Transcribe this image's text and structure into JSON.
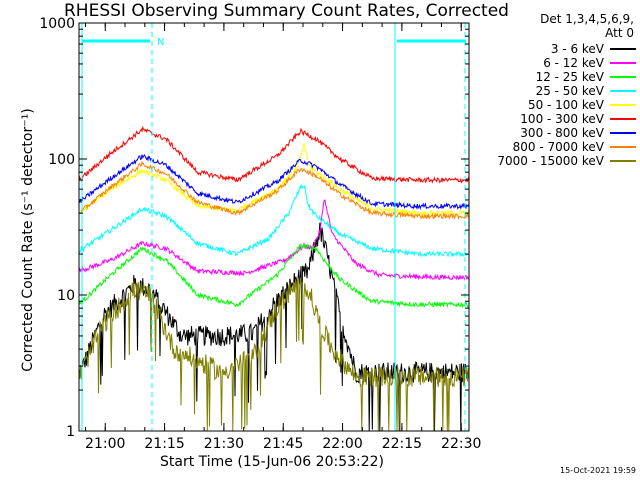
{
  "chart_data": {
    "type": "line",
    "title": "RHESSI Observing Summary Count Rates, Corrected",
    "xlabel": "Start Time (15-Jun-06 20:53:22)",
    "ylabel": "Corrected Count Rate (s⁻¹ detector⁻¹)",
    "yscale": "log",
    "ylim": [
      1,
      1000
    ],
    "xlim_minutes": [
      0,
      98.6
    ],
    "x_ticks": [
      "21:00",
      "21:15",
      "21:30",
      "21:45",
      "22:00",
      "22:15",
      "22:30"
    ],
    "y_ticks": [
      "1",
      "10",
      "100",
      "1000"
    ],
    "legend_header": [
      "Det 1,3,4,5,6,9,",
      "Att 0"
    ],
    "series": [
      {
        "name": "3 - 6 keV",
        "color": "#000000",
        "x": [
          0,
          6,
          14,
          18,
          26,
          36,
          44,
          50,
          55,
          58,
          60,
          61,
          63,
          66,
          70,
          74,
          76
        ],
        "y": [
          2.5,
          7,
          12,
          11,
          5,
          5,
          5.2,
          9,
          13,
          15,
          25,
          30,
          18,
          7,
          2.7,
          2.7,
          2.7
        ]
      },
      {
        "name": "6 - 12 keV",
        "color": "#ff00ff",
        "x": [
          0,
          8,
          16,
          22,
          30,
          42,
          52,
          57,
          59,
          61,
          62,
          64,
          70,
          76,
          90,
          98
        ],
        "y": [
          15,
          18,
          24,
          22,
          15,
          14.5,
          18,
          23,
          22,
          30,
          52,
          28,
          17,
          14,
          13.5,
          13.5
        ]
      },
      {
        "name": "12 - 25 keV",
        "color": "#00ff00",
        "x": [
          0,
          8,
          16,
          22,
          30,
          40,
          50,
          56,
          60,
          62,
          66,
          74,
          86,
          98
        ],
        "y": [
          8.5,
          14,
          22,
          18,
          10,
          8.5,
          14,
          23,
          22,
          18,
          13,
          9,
          8.5,
          8.5
        ]
      },
      {
        "name": "25 - 50 keV",
        "color": "#00ffff",
        "x": [
          0,
          8,
          16,
          22,
          30,
          40,
          48,
          53,
          56,
          57,
          58,
          60,
          66,
          74,
          86,
          98
        ],
        "y": [
          21,
          30,
          43,
          38,
          24,
          20,
          26,
          40,
          62,
          63,
          45,
          38,
          28,
          22,
          20,
          20
        ]
      },
      {
        "name": "50 - 100 keV",
        "color": "#ffff00",
        "x": [
          0,
          8,
          16,
          22,
          30,
          40,
          50,
          55,
          57,
          58,
          60,
          66,
          74,
          86,
          98
        ],
        "y": [
          40,
          60,
          82,
          70,
          45,
          42,
          60,
          85,
          130,
          90,
          80,
          60,
          43,
          40,
          40
        ]
      },
      {
        "name": "100 - 300 keV",
        "color": "#ff0000",
        "x": [
          0,
          8,
          16,
          22,
          30,
          40,
          50,
          56,
          60,
          66,
          74,
          86,
          98
        ],
        "y": [
          70,
          110,
          165,
          140,
          80,
          70,
          105,
          160,
          140,
          100,
          72,
          70,
          70
        ]
      },
      {
        "name": "300 - 800 keV",
        "color": "#0000ff",
        "x": [
          0,
          8,
          16,
          22,
          30,
          40,
          50,
          56,
          60,
          66,
          74,
          86,
          98
        ],
        "y": [
          48,
          72,
          105,
          90,
          56,
          48,
          68,
          98,
          88,
          65,
          47,
          45,
          45
        ]
      },
      {
        "name": "800 - 7000 keV",
        "color": "#ff8000",
        "x": [
          0,
          8,
          16,
          22,
          30,
          40,
          50,
          56,
          60,
          66,
          74,
          86,
          98
        ],
        "y": [
          40,
          62,
          92,
          78,
          48,
          40,
          58,
          85,
          75,
          55,
          40,
          38,
          38
        ]
      },
      {
        "name": "7000 - 15000 keV",
        "color": "#808000",
        "x": [
          0,
          6,
          14,
          18,
          24,
          36,
          44,
          50,
          55,
          58,
          61,
          64,
          70,
          74,
          98
        ],
        "y": [
          2.5,
          6,
          11,
          10,
          4,
          2.7,
          3.5,
          8,
          12,
          11,
          6,
          4,
          2.5,
          2.5,
          2.5
        ]
      }
    ],
    "annotations": {
      "top_bar_label": "N",
      "cyan_top_bar_color": "#00ffff"
    }
  },
  "timestamp": "15-Oct-2021 19:59"
}
